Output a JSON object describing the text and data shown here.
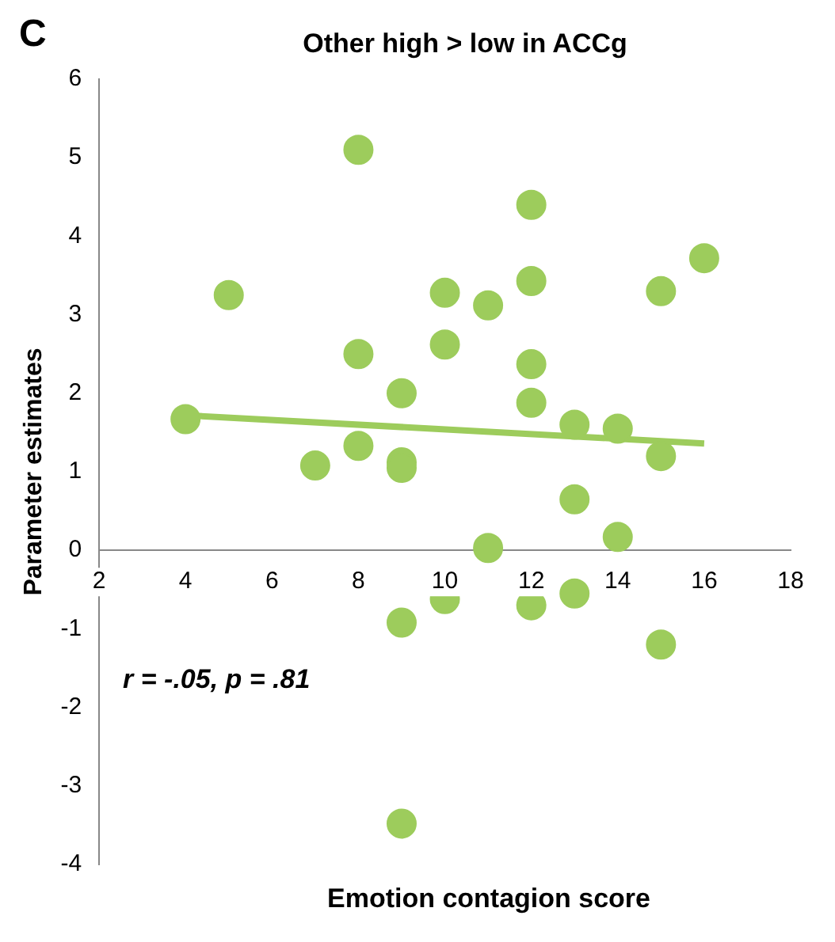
{
  "chart_data": {
    "type": "scatter",
    "title": "Other high > low in ACCg",
    "xlabel": "Emotion contagion score",
    "ylabel": "Parameter estimates",
    "annotations": [
      "C",
      "r = -.05, p = .81"
    ],
    "xlim": [
      2,
      18
    ],
    "xticks": [
      2,
      4,
      6,
      8,
      10,
      12,
      14,
      16,
      18
    ],
    "ylim": [
      -4,
      6
    ],
    "yticks": [
      -4,
      -3,
      -2,
      -1,
      0,
      1,
      2,
      3,
      4,
      5,
      6
    ],
    "grid": false,
    "legend": false,
    "marker": "circle",
    "series": [
      {
        "type": "scatter",
        "color": "#9dcc5c",
        "x": [
          4,
          5,
          7,
          8,
          8,
          8,
          9,
          9,
          9,
          9,
          9,
          10,
          10,
          10,
          11,
          11,
          12,
          12,
          12,
          12,
          12,
          13,
          13,
          13,
          14,
          14,
          15,
          15,
          15,
          16
        ],
        "values": [
          1.67,
          3.25,
          1.08,
          5.1,
          2.5,
          1.33,
          2.0,
          1.12,
          1.05,
          -0.92,
          -3.48,
          3.28,
          2.62,
          -0.62,
          3.12,
          0.03,
          4.4,
          3.43,
          2.37,
          1.88,
          -0.7,
          1.6,
          0.65,
          -0.55,
          1.55,
          0.17,
          3.3,
          1.2,
          -1.2,
          3.72
        ]
      },
      {
        "type": "line",
        "marker": "none",
        "color": "#9dcc5c",
        "x": [
          4,
          16
        ],
        "values": [
          1.72,
          1.36
        ]
      }
    ]
  }
}
